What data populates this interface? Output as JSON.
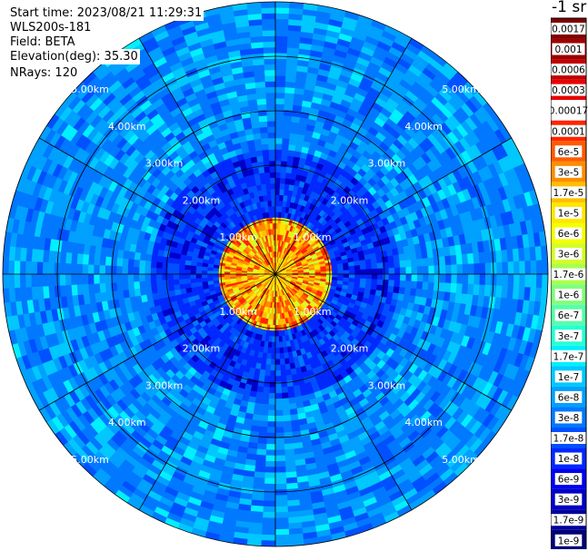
{
  "info": {
    "start_time": "Start time: 2023/08/21 11:29:31",
    "site": "WLS200s-181",
    "field": "Field: BETA",
    "elevation": "Elevation(deg): 35.30",
    "nrays": "NRays: 120"
  },
  "colorbar": {
    "unit_label": "-1 sr",
    "ticks": [
      "0.0017",
      "0.001",
      "0.0006",
      "0.0003",
      "0.00017",
      "0.0001",
      "6e-5",
      "3e-5",
      "1.7e-5",
      "1e-5",
      "6e-6",
      "3e-6",
      "1.7e-6",
      "1e-6",
      "6e-7",
      "3e-7",
      "1.7e-7",
      "1e-7",
      "6e-8",
      "3e-8",
      "1.7e-8",
      "1e-8",
      "6e-9",
      "3e-9",
      "1.7e-9",
      "1e-9"
    ],
    "colors": [
      "#7f0000",
      "#9c0000",
      "#c00000",
      "#e60000",
      "#ffffff",
      "#ff2400",
      "#ff5a00",
      "#ff8c00",
      "#ffbe00",
      "#ffe600",
      "#f5ff00",
      "#d2ff28",
      "#aaff50",
      "#80ff7a",
      "#55ffa8",
      "#28ffd2",
      "#00f0ff",
      "#00c8ff",
      "#00a0ff",
      "#0078ff",
      "#0050ff",
      "#0028ff",
      "#0000f0",
      "#0000c8",
      "#00009c",
      "#000078"
    ]
  },
  "ppi": {
    "ring_labels": [
      "1.00km",
      "2.00km",
      "3.00km",
      "4.00km",
      "5.00km"
    ]
  }
}
